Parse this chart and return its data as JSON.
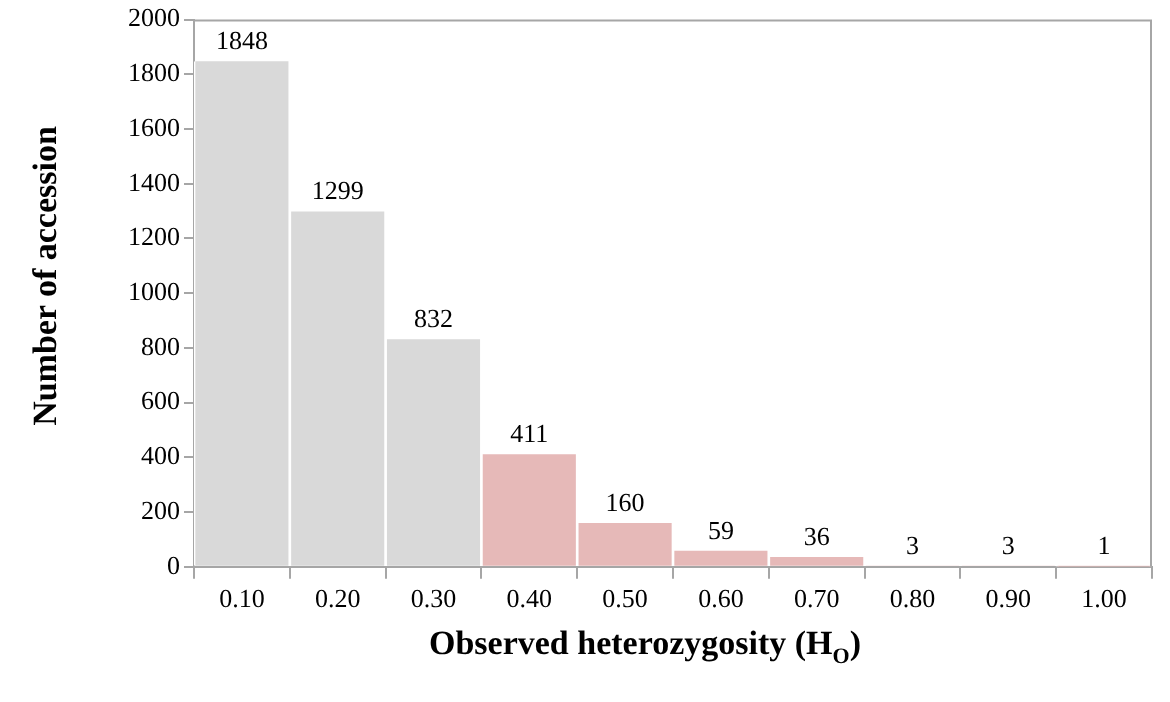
{
  "chart_data": {
    "type": "bar",
    "xlabel": "Observed heterozygosity (H$_{O}$)",
    "ylabel": "Number of accession",
    "categories": [
      "0.10",
      "0.20",
      "0.30",
      "0.40",
      "0.50",
      "0.60",
      "0.70",
      "0.80",
      "0.90",
      "1.00"
    ],
    "values": [
      1848,
      1299,
      832,
      411,
      160,
      59,
      36,
      3,
      3,
      1
    ],
    "colors": [
      "#d9d9d9",
      "#d9d9d9",
      "#d9d9d9",
      "#e6b9b8",
      "#e6b9b8",
      "#e6b9b8",
      "#e6b9b8",
      "#e6b9b8",
      "#e6b9b8",
      "#e6b9b8"
    ],
    "ylim": [
      0,
      2000
    ],
    "yticks": [
      0,
      200,
      400,
      600,
      800,
      1000,
      1200,
      1400,
      1600,
      1800,
      2000
    ],
    "data_labels": true,
    "grid": false,
    "legend": false
  }
}
